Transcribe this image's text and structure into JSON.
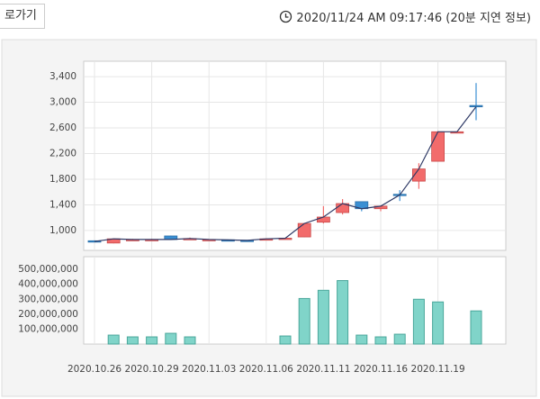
{
  "header": {
    "button": "로가기",
    "timestamp": "2020/11/24 AM 09:17:46 (20분 지연 정보)"
  },
  "chart_data": {
    "type": "candlestick",
    "categories": [
      "2020.10.26",
      null,
      null,
      "2020.10.29",
      null,
      null,
      "2020.11.03",
      null,
      null,
      "2020.11.06",
      null,
      null,
      "2020.11.11",
      null,
      null,
      "2020.11.16",
      null,
      null,
      "2020.11.19",
      null,
      null
    ],
    "open": [
      840,
      805,
      860,
      860,
      915,
      870,
      860,
      855,
      848,
      850,
      870,
      900,
      1130,
      1280,
      1450,
      1340,
      1565,
      1770,
      2080,
      2540,
      2950
    ],
    "high": [
      845,
      875,
      870,
      870,
      920,
      890,
      865,
      860,
      852,
      878,
      885,
      1120,
      1380,
      1490,
      1450,
      1390,
      1630,
      2050,
      2550,
      2540,
      3300
    ],
    "low": [
      820,
      800,
      850,
      850,
      855,
      860,
      855,
      848,
      842,
      845,
      865,
      895,
      1110,
      1250,
      1300,
      1300,
      1460,
      1650,
      2080,
      2540,
      2720
    ],
    "close": [
      830,
      870,
      860,
      860,
      860,
      875,
      860,
      853,
      846,
      870,
      880,
      1110,
      1210,
      1420,
      1340,
      1380,
      1555,
      1960,
      2540,
      2540,
      2930
    ],
    "volume": [
      0,
      60000000,
      48000000,
      48000000,
      72000000,
      48000000,
      0,
      0,
      0,
      0,
      54000000,
      305000000,
      360000000,
      425000000,
      60000000,
      48000000,
      66000000,
      300000000,
      282000000,
      0,
      222000000
    ],
    "up_color": "#f26b6b",
    "down_color": "#3a8fd3",
    "line_color": "#2f3a66",
    "volume_color": "#80d4c9",
    "ylim": [
      690,
      3640
    ],
    "yticks": [
      {
        "value": 1000,
        "label": "1,000"
      },
      {
        "value": 1400,
        "label": "1,400"
      },
      {
        "value": 1800,
        "label": "1,800"
      },
      {
        "value": 2200,
        "label": "2,200"
      },
      {
        "value": 2600,
        "label": "2,600"
      },
      {
        "value": 3000,
        "label": "3,000"
      },
      {
        "value": 3400,
        "label": "3,400"
      }
    ],
    "vlim": [
      0,
      585000000
    ],
    "vticks": [
      {
        "value": 100000000,
        "label": "100,000,000"
      },
      {
        "value": 200000000,
        "label": "200,000,000"
      },
      {
        "value": 300000000,
        "label": "300,000,000"
      },
      {
        "value": 400000000,
        "label": "400,000,000"
      },
      {
        "value": 500000000,
        "label": "500,000,000"
      }
    ],
    "grid": true
  }
}
